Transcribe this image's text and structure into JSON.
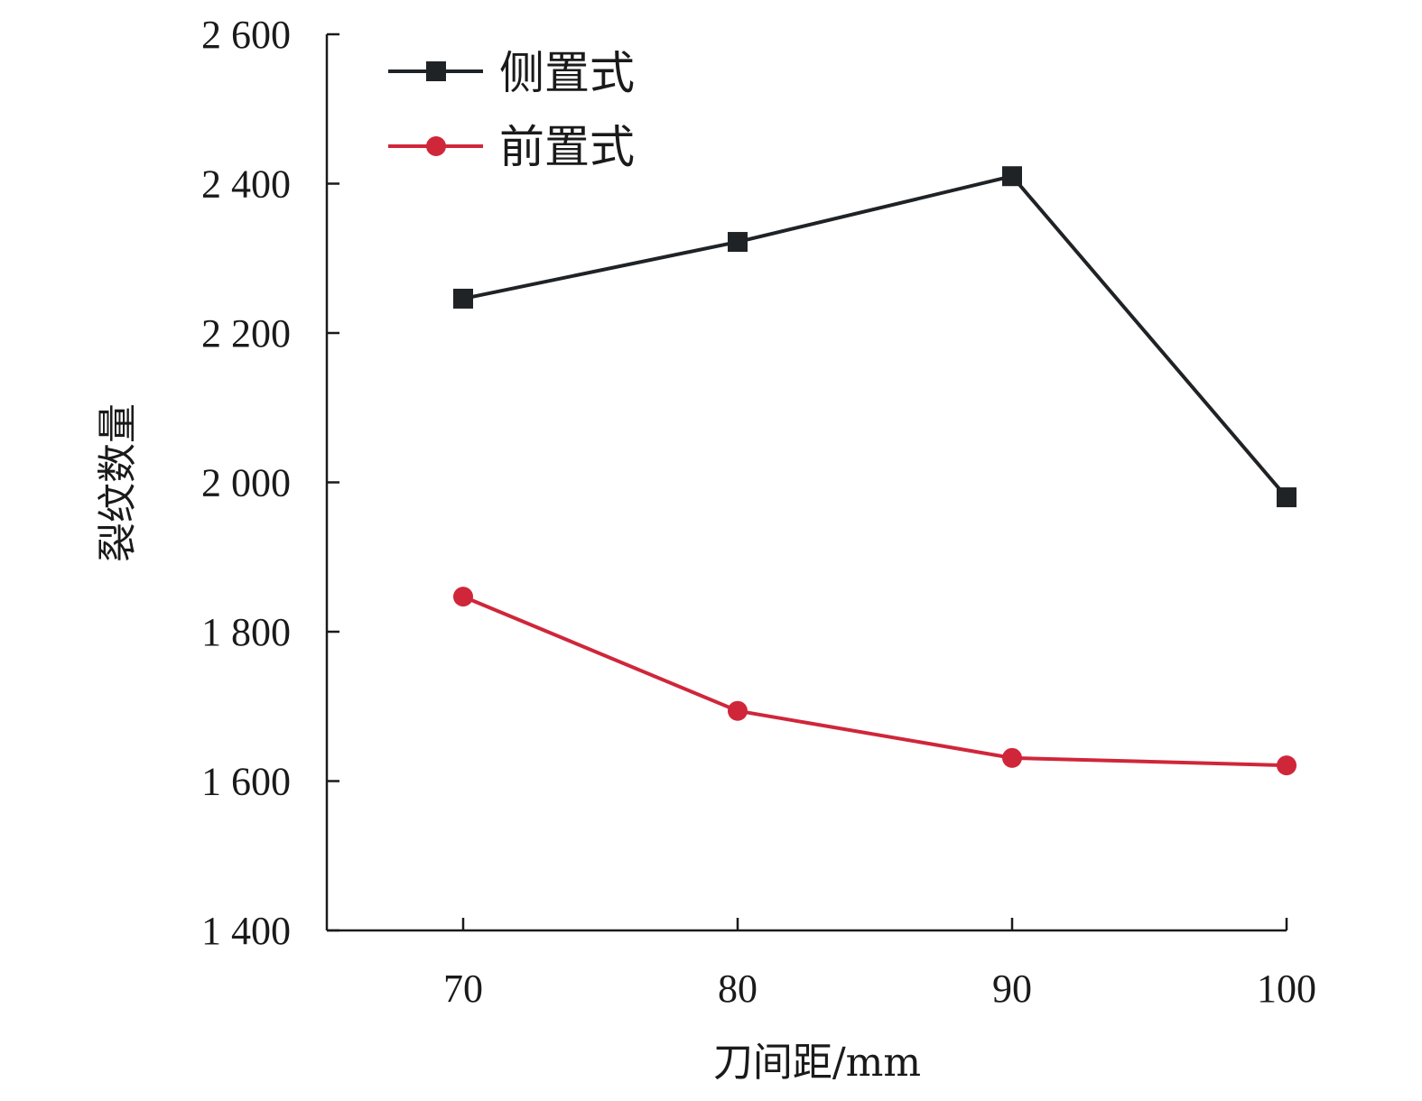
{
  "chart_data": {
    "type": "line",
    "x": [
      70,
      80,
      90,
      100
    ],
    "xlabel": "刀间距/mm",
    "ylabel": "裂纹数量",
    "ylim": [
      1400,
      2600
    ],
    "yticks": [
      1400,
      1600,
      1800,
      2000,
      2200,
      2400,
      2600
    ],
    "ytick_labels": [
      "1 400",
      "1 600",
      "1 800",
      "2 000",
      "2 200",
      "2 400",
      "2 600"
    ],
    "xtick_labels": [
      "70",
      "80",
      "90",
      "100"
    ],
    "grid": false,
    "legend_position": "top-left",
    "series": [
      {
        "name": "侧置式",
        "values": [
          2246,
          2322,
          2410,
          1980
        ],
        "marker": "square",
        "color": "#1f2326"
      },
      {
        "name": "前置式",
        "values": [
          1847,
          1694,
          1631,
          1621
        ],
        "marker": "circle",
        "color": "#d0263a"
      }
    ]
  }
}
